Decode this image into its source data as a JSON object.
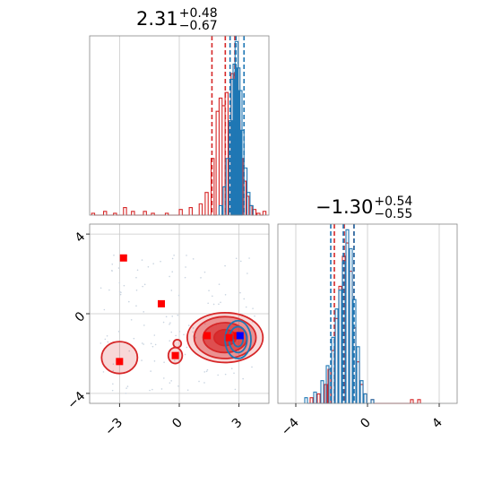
{
  "chart_data": [
    {
      "type": "histogram",
      "panel": "top-left",
      "title": {
        "value": "2.31",
        "plus": "+0.48",
        "minus": "−0.67"
      },
      "xlim": [
        -4.5,
        4.5
      ],
      "grid": true,
      "series": [
        {
          "name": "",
          "color": "#d62728",
          "bins": [
            [
              -4.4,
              0.01
            ],
            [
              -3.8,
              0.02
            ],
            [
              -3.3,
              0.01
            ],
            [
              -2.8,
              0.04
            ],
            [
              -2.4,
              0.02
            ],
            [
              -1.8,
              0.02
            ],
            [
              -1.4,
              0.01
            ],
            [
              -0.7,
              0.01
            ],
            [
              0.0,
              0.03
            ],
            [
              0.5,
              0.04
            ],
            [
              1.0,
              0.06
            ],
            [
              1.3,
              0.12
            ],
            [
              1.6,
              0.3
            ],
            [
              1.85,
              0.55
            ],
            [
              2.0,
              0.62
            ],
            [
              2.15,
              0.58
            ],
            [
              2.3,
              0.65
            ],
            [
              2.45,
              0.48
            ],
            [
              2.6,
              0.75
            ],
            [
              2.75,
              0.55
            ],
            [
              2.9,
              0.5
            ],
            [
              3.05,
              0.3
            ],
            [
              3.2,
              0.18
            ],
            [
              3.35,
              0.1
            ],
            [
              3.5,
              0.05
            ],
            [
              3.7,
              0.03
            ],
            [
              3.9,
              0.01
            ],
            [
              4.2,
              0.02
            ]
          ],
          "quantiles": [
            1.64,
            2.31,
            2.79
          ]
        },
        {
          "name": "",
          "color": "#1f77b4",
          "bins": [
            [
              2.0,
              0.05
            ],
            [
              2.2,
              0.15
            ],
            [
              2.35,
              0.3
            ],
            [
              2.5,
              0.5
            ],
            [
              2.6,
              0.72
            ],
            [
              2.7,
              0.8
            ],
            [
              2.8,
              0.92
            ],
            [
              2.9,
              0.78
            ],
            [
              3.0,
              0.66
            ],
            [
              3.1,
              0.45
            ],
            [
              3.25,
              0.25
            ],
            [
              3.4,
              0.12
            ],
            [
              3.55,
              0.05
            ]
          ],
          "quantiles": [
            2.55,
            2.85,
            3.25
          ]
        }
      ]
    },
    {
      "type": "histogram",
      "panel": "bottom-right",
      "title": {
        "value": "−1.30",
        "plus": "+0.54",
        "minus": "−0.55"
      },
      "xlim": [
        -5,
        5
      ],
      "xticks": [
        -4,
        0,
        4
      ],
      "grid": true,
      "series": [
        {
          "name": "",
          "color": "#d62728",
          "bins": [
            [
              -3.2,
              0.03
            ],
            [
              -2.8,
              0.05
            ],
            [
              -2.4,
              0.1
            ],
            [
              -2.2,
              0.18
            ],
            [
              -2.0,
              0.28
            ],
            [
              -1.8,
              0.45
            ],
            [
              -1.6,
              0.62
            ],
            [
              -1.4,
              0.78
            ],
            [
              -1.2,
              0.85
            ],
            [
              -1.0,
              0.7
            ],
            [
              -0.8,
              0.4
            ],
            [
              -0.6,
              0.22
            ],
            [
              -0.4,
              0.1
            ],
            [
              -0.2,
              0.05
            ],
            [
              0.2,
              0.02
            ],
            [
              2.4,
              0.02
            ],
            [
              2.8,
              0.02
            ]
          ],
          "quantiles": [
            -1.85,
            -1.3,
            -0.76
          ]
        },
        {
          "name": "",
          "color": "#1f77b4",
          "bins": [
            [
              -3.5,
              0.03
            ],
            [
              -3.0,
              0.06
            ],
            [
              -2.6,
              0.12
            ],
            [
              -2.3,
              0.2
            ],
            [
              -2.0,
              0.35
            ],
            [
              -1.8,
              0.5
            ],
            [
              -1.6,
              0.6
            ],
            [
              -1.4,
              0.75
            ],
            [
              -1.2,
              0.92
            ],
            [
              -1.0,
              0.82
            ],
            [
              -0.8,
              0.55
            ],
            [
              -0.6,
              0.3
            ],
            [
              -0.4,
              0.12
            ],
            [
              -0.2,
              0.05
            ],
            [
              0.2,
              0.02
            ]
          ],
          "quantiles": [
            -2.05,
            -1.35,
            -0.75
          ]
        }
      ]
    },
    {
      "type": "scatter",
      "panel": "bottom-left",
      "xlim": [
        -4.5,
        4.5
      ],
      "ylim": [
        -4.5,
        4.5
      ],
      "xticks": [
        -3,
        0,
        3
      ],
      "yticks": [
        -4,
        0,
        4
      ],
      "grid": true,
      "series": [
        {
          "name": "",
          "color": "#ff0000",
          "marker": "square",
          "points": [
            [
              -2.8,
              2.8
            ],
            [
              -0.9,
              0.5
            ],
            [
              -3.0,
              -2.4
            ],
            [
              -0.2,
              -2.1
            ],
            [
              1.4,
              -1.1
            ],
            [
              2.5,
              -1.2
            ],
            [
              2.9,
              -1.1
            ]
          ]
        },
        {
          "name": "",
          "color": "#0000ff",
          "marker": "square",
          "points": [
            [
              3.05,
              -1.1
            ]
          ]
        }
      ],
      "contours": [
        {
          "color": "#d62728",
          "center": [
            2.3,
            -1.2
          ],
          "rx": [
            0.55,
            1.1,
            1.55,
            1.9
          ],
          "ry": [
            0.4,
            0.75,
            1.05,
            1.25
          ]
        },
        {
          "color": "#1f77b4",
          "center": [
            2.95,
            -1.3
          ],
          "rx": [
            0.25,
            0.45,
            0.65
          ],
          "ry": [
            0.35,
            0.65,
            0.95
          ]
        },
        {
          "color": "#d62728",
          "center": [
            -3.0,
            -2.2
          ],
          "rx": [
            0.9
          ],
          "ry": [
            0.8
          ]
        },
        {
          "color": "#d62728",
          "center": [
            -0.2,
            -2.1
          ],
          "rx": [
            0.35
          ],
          "ry": [
            0.4
          ]
        },
        {
          "color": "#d62728",
          "center": [
            -0.1,
            -1.5
          ],
          "rx": [
            0.2
          ],
          "ry": [
            0.2
          ]
        }
      ]
    }
  ]
}
